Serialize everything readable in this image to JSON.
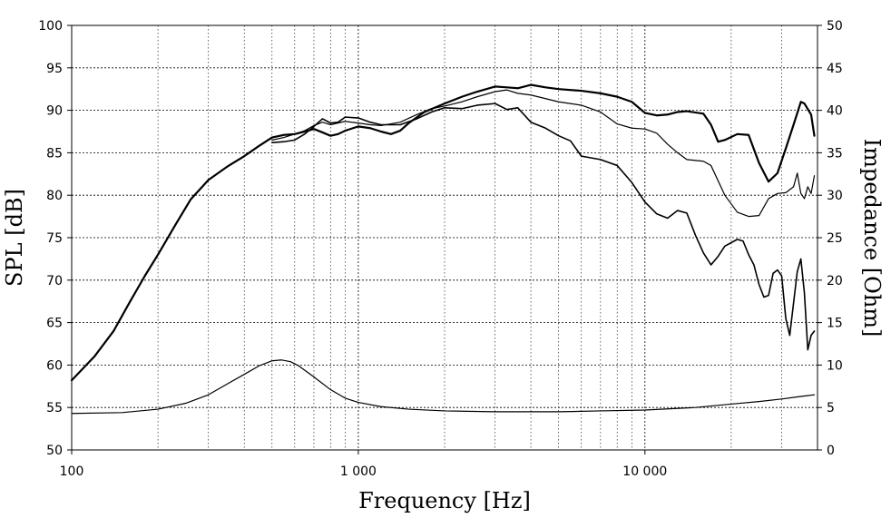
{
  "chart_data": {
    "type": "line",
    "xlabel": "Frequency [Hz]",
    "ylabel": "SPL [dB]",
    "y2label": "Impedance [Ohm]",
    "xscale": "log",
    "xlim": [
      100,
      40000
    ],
    "ylim": [
      50,
      100
    ],
    "y2lim": [
      0,
      50
    ],
    "grid": true,
    "xticks": [
      {
        "value": 100,
        "label": "100"
      },
      {
        "value": 1000,
        "label": "1 000"
      },
      {
        "value": 10000,
        "label": "10 000"
      }
    ],
    "yticks": [
      50,
      55,
      60,
      65,
      70,
      75,
      80,
      85,
      90,
      95,
      100
    ],
    "y2ticks": [
      0,
      5,
      10,
      15,
      20,
      25,
      30,
      35,
      40,
      45,
      50
    ],
    "series": [
      {
        "axis": "left",
        "weight": 2.2,
        "points": [
          [
            100,
            58.2
          ],
          [
            120,
            61
          ],
          [
            140,
            64
          ],
          [
            160,
            67.5
          ],
          [
            180,
            70.5
          ],
          [
            200,
            73
          ],
          [
            230,
            76.5
          ],
          [
            260,
            79.5
          ],
          [
            300,
            81.8
          ],
          [
            350,
            83.4
          ],
          [
            400,
            84.6
          ],
          [
            450,
            85.8
          ],
          [
            500,
            86.8
          ],
          [
            550,
            87.1
          ],
          [
            600,
            87.2
          ],
          [
            650,
            87.5
          ],
          [
            700,
            87.8
          ],
          [
            750,
            87.4
          ],
          [
            800,
            87
          ],
          [
            850,
            87.2
          ],
          [
            900,
            87.6
          ],
          [
            1000,
            88.1
          ],
          [
            1100,
            87.9
          ],
          [
            1200,
            87.5
          ],
          [
            1300,
            87.2
          ],
          [
            1400,
            87.6
          ],
          [
            1500,
            88.5
          ],
          [
            1700,
            89.8
          ],
          [
            2000,
            90.8
          ],
          [
            2300,
            91.6
          ],
          [
            2600,
            92.2
          ],
          [
            3000,
            92.8
          ],
          [
            3300,
            92.7
          ],
          [
            3600,
            92.6
          ],
          [
            4000,
            93
          ],
          [
            4500,
            92.7
          ],
          [
            5000,
            92.5
          ],
          [
            6000,
            92.3
          ],
          [
            7000,
            92
          ],
          [
            8000,
            91.6
          ],
          [
            9000,
            91
          ],
          [
            10000,
            89.7
          ],
          [
            11000,
            89.4
          ],
          [
            12000,
            89.5
          ],
          [
            13000,
            89.8
          ],
          [
            14000,
            89.9
          ],
          [
            16000,
            89.6
          ],
          [
            17000,
            88.3
          ],
          [
            18000,
            86.3
          ],
          [
            19000,
            86.5
          ],
          [
            21000,
            87.2
          ],
          [
            23000,
            87.1
          ],
          [
            25000,
            83.8
          ],
          [
            27000,
            81.6
          ],
          [
            29000,
            82.6
          ],
          [
            31000,
            85.5
          ],
          [
            33000,
            88.3
          ],
          [
            35000,
            91
          ],
          [
            36000,
            90.8
          ],
          [
            38000,
            89.5
          ],
          [
            39000,
            87
          ]
        ]
      },
      {
        "axis": "left",
        "weight": 1.2,
        "points": [
          [
            500,
            86.5
          ],
          [
            550,
            86.8
          ],
          [
            600,
            87.2
          ],
          [
            650,
            87.6
          ],
          [
            700,
            88.2
          ],
          [
            750,
            88.6
          ],
          [
            800,
            88.3
          ],
          [
            900,
            88.7
          ],
          [
            1000,
            88.5
          ],
          [
            1100,
            88.3
          ],
          [
            1200,
            88.2
          ],
          [
            1400,
            88.6
          ],
          [
            1600,
            89.5
          ],
          [
            1800,
            90.2
          ],
          [
            2000,
            90.5
          ],
          [
            2300,
            91
          ],
          [
            2600,
            91.6
          ],
          [
            3000,
            92.2
          ],
          [
            3300,
            92.4
          ],
          [
            3600,
            92
          ],
          [
            4000,
            91.8
          ],
          [
            5000,
            91
          ],
          [
            6000,
            90.6
          ],
          [
            7000,
            89.8
          ],
          [
            8000,
            88.4
          ],
          [
            9000,
            87.9
          ],
          [
            10000,
            87.8
          ],
          [
            11000,
            87.3
          ],
          [
            12000,
            86
          ],
          [
            13000,
            85
          ],
          [
            14000,
            84.2
          ],
          [
            16000,
            84
          ],
          [
            17000,
            83.5
          ],
          [
            19000,
            80
          ],
          [
            21000,
            78
          ],
          [
            23000,
            77.5
          ],
          [
            25000,
            77.6
          ],
          [
            27000,
            79.6
          ],
          [
            29000,
            80.2
          ],
          [
            31000,
            80.3
          ],
          [
            33000,
            81
          ],
          [
            34000,
            82.6
          ],
          [
            35000,
            80.2
          ],
          [
            36000,
            79.6
          ],
          [
            37000,
            81
          ],
          [
            38000,
            80.2
          ],
          [
            39000,
            82.3
          ]
        ]
      },
      {
        "axis": "left",
        "weight": 1.6,
        "points": [
          [
            500,
            86.2
          ],
          [
            550,
            86.3
          ],
          [
            600,
            86.5
          ],
          [
            650,
            87.2
          ],
          [
            700,
            88.1
          ],
          [
            750,
            89
          ],
          [
            800,
            88.5
          ],
          [
            850,
            88.6
          ],
          [
            900,
            89.2
          ],
          [
            1000,
            89.1
          ],
          [
            1100,
            88.6
          ],
          [
            1200,
            88.3
          ],
          [
            1400,
            88.3
          ],
          [
            1600,
            89
          ],
          [
            1800,
            89.8
          ],
          [
            2000,
            90.3
          ],
          [
            2300,
            90.2
          ],
          [
            2600,
            90.6
          ],
          [
            3000,
            90.8
          ],
          [
            3300,
            90.1
          ],
          [
            3600,
            90.3
          ],
          [
            4000,
            88.6
          ],
          [
            4500,
            87.9
          ],
          [
            5000,
            87
          ],
          [
            5500,
            86.4
          ],
          [
            6000,
            84.6
          ],
          [
            7000,
            84.2
          ],
          [
            8000,
            83.5
          ],
          [
            9000,
            81.5
          ],
          [
            10000,
            79.2
          ],
          [
            11000,
            77.8
          ],
          [
            12000,
            77.3
          ],
          [
            13000,
            78.2
          ],
          [
            14000,
            77.9
          ],
          [
            15000,
            75.3
          ],
          [
            16000,
            73.2
          ],
          [
            17000,
            71.8
          ],
          [
            18000,
            72.8
          ],
          [
            19000,
            74
          ],
          [
            21000,
            74.8
          ],
          [
            22000,
            74.6
          ],
          [
            23000,
            73
          ],
          [
            24000,
            71.8
          ],
          [
            25000,
            69.5
          ],
          [
            26000,
            68
          ],
          [
            27000,
            68.2
          ],
          [
            28000,
            70.8
          ],
          [
            29000,
            71.2
          ],
          [
            30000,
            70.5
          ],
          [
            31000,
            65.5
          ],
          [
            32000,
            63.5
          ],
          [
            33000,
            67.3
          ],
          [
            34000,
            71
          ],
          [
            35000,
            72.5
          ],
          [
            36000,
            68.5
          ],
          [
            37000,
            61.8
          ],
          [
            38000,
            63.5
          ],
          [
            39000,
            64
          ]
        ]
      },
      {
        "axis": "right",
        "weight": 1.2,
        "points": [
          [
            100,
            4.3
          ],
          [
            150,
            4.4
          ],
          [
            200,
            4.8
          ],
          [
            250,
            5.5
          ],
          [
            300,
            6.5
          ],
          [
            350,
            7.8
          ],
          [
            400,
            8.9
          ],
          [
            450,
            9.9
          ],
          [
            500,
            10.5
          ],
          [
            540,
            10.6
          ],
          [
            580,
            10.4
          ],
          [
            620,
            9.9
          ],
          [
            700,
            8.6
          ],
          [
            800,
            7.1
          ],
          [
            900,
            6.1
          ],
          [
            1000,
            5.6
          ],
          [
            1200,
            5.1
          ],
          [
            1500,
            4.8
          ],
          [
            2000,
            4.6
          ],
          [
            3000,
            4.5
          ],
          [
            5000,
            4.5
          ],
          [
            7000,
            4.6
          ],
          [
            10000,
            4.7
          ],
          [
            15000,
            5
          ],
          [
            20000,
            5.4
          ],
          [
            25000,
            5.7
          ],
          [
            30000,
            6.0
          ],
          [
            35000,
            6.3
          ],
          [
            39000,
            6.5
          ]
        ]
      }
    ]
  }
}
